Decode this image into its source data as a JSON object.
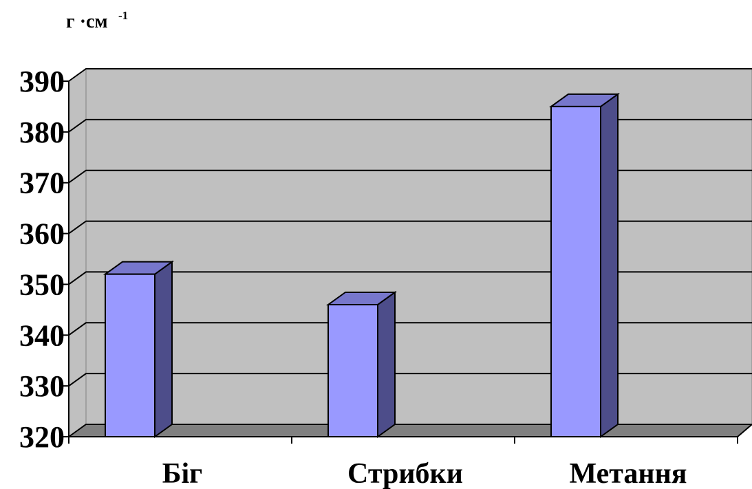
{
  "chart_data": {
    "type": "bar3d",
    "y_label": {
      "text": "г ·см",
      "superscript": "-1"
    },
    "categories": [
      "Біг",
      "Стрибки",
      "Метання"
    ],
    "values": [
      352,
      346,
      385
    ],
    "color": "#9999ff",
    "ylim": [
      320,
      390
    ],
    "yticks": [
      320,
      330,
      340,
      350,
      360,
      370,
      380,
      390
    ],
    "grid": true
  }
}
